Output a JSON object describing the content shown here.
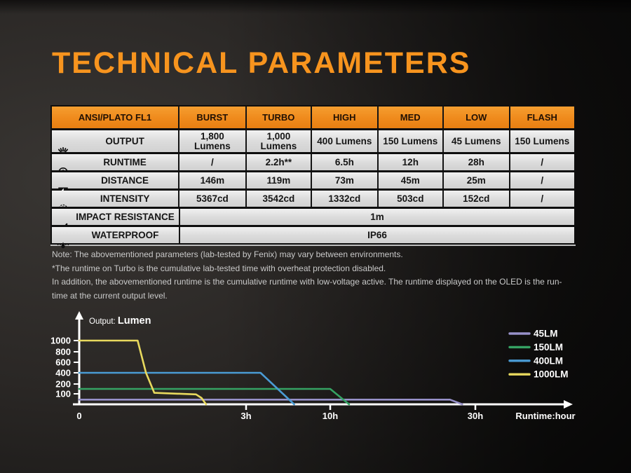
{
  "title": "TECHNICAL PARAMETERS",
  "colors": {
    "accent_orange": "#f7941e",
    "header_orange": "#ef8a1c",
    "row_gray": "#dcdcdc",
    "note_gray": "#c9c9c9",
    "axis_white": "#ffffff"
  },
  "table": {
    "header": [
      "ANSI/PLATO FL1",
      "BURST",
      "TURBO",
      "HIGH",
      "MED",
      "LOW",
      "FLASH"
    ],
    "rows": [
      {
        "icon": "output-icon",
        "label": "OUTPUT",
        "cells": [
          "1,800\nLumens",
          "1,000\nLumens",
          "400 Lumens",
          "150 Lumens",
          "45 Lumens",
          "150 Lumens"
        ]
      },
      {
        "icon": "runtime-icon",
        "label": "RUNTIME",
        "cells": [
          "/",
          "2.2h**",
          "6.5h",
          "12h",
          "28h",
          "/"
        ]
      },
      {
        "icon": "distance-icon",
        "label": "DISTANCE",
        "cells": [
          "146m",
          "119m",
          "73m",
          "45m",
          "25m",
          "/"
        ]
      },
      {
        "icon": "intensity-icon",
        "label": "INTENSITY",
        "cells": [
          "5367cd",
          "3542cd",
          "1332cd",
          "503cd",
          "152cd",
          "/"
        ]
      },
      {
        "icon": "impact-resistance-icon",
        "label": "IMPACT RESISTANCE",
        "span": "1m"
      },
      {
        "icon": "waterproof-icon",
        "label": "WATERPROOF",
        "span": "IP66"
      }
    ]
  },
  "notes": [
    "Note: The abovementioned parameters (lab-tested by Fenix) may vary between environments.",
    "*The runtime on Turbo is the cumulative lab-tested time with overheat protection disabled.",
    "In addition, the abovementioned runtime is the cumulative runtime with low-voltage active. The runtime displayed on the OLED is the run-",
    "time at the current output level."
  ],
  "chart_data": {
    "type": "line",
    "ylabel_small": "Output:",
    "ylabel_big": "Lumen",
    "xlabel": "Runtime:hour",
    "x_ticks": [
      {
        "label": "0",
        "h": 0
      },
      {
        "label": "3h",
        "h": 3
      },
      {
        "label": "10h",
        "h": 10
      },
      {
        "label": "30h",
        "h": 30
      }
    ],
    "y_ticks": [
      100,
      200,
      400,
      600,
      800,
      1000
    ],
    "series": [
      {
        "name": "45LM",
        "color": "#9791c9",
        "points": [
          [
            0,
            45
          ],
          [
            26.5,
            45
          ],
          [
            28.2,
            0
          ]
        ]
      },
      {
        "name": "150LM",
        "color": "#35a263",
        "points": [
          [
            0,
            150
          ],
          [
            10,
            150
          ],
          [
            12.6,
            0
          ]
        ]
      },
      {
        "name": "400LM",
        "color": "#4a9bd4",
        "points": [
          [
            0,
            400
          ],
          [
            4.2,
            400
          ],
          [
            7,
            0
          ]
        ]
      },
      {
        "name": "1000LM",
        "color": "#e8d95e",
        "points": [
          [
            0,
            1000
          ],
          [
            1.05,
            1000
          ],
          [
            1.2,
            400
          ],
          [
            1.35,
            110
          ],
          [
            2.1,
            95
          ],
          [
            2.2,
            60
          ],
          [
            2.28,
            0
          ]
        ]
      }
    ]
  }
}
